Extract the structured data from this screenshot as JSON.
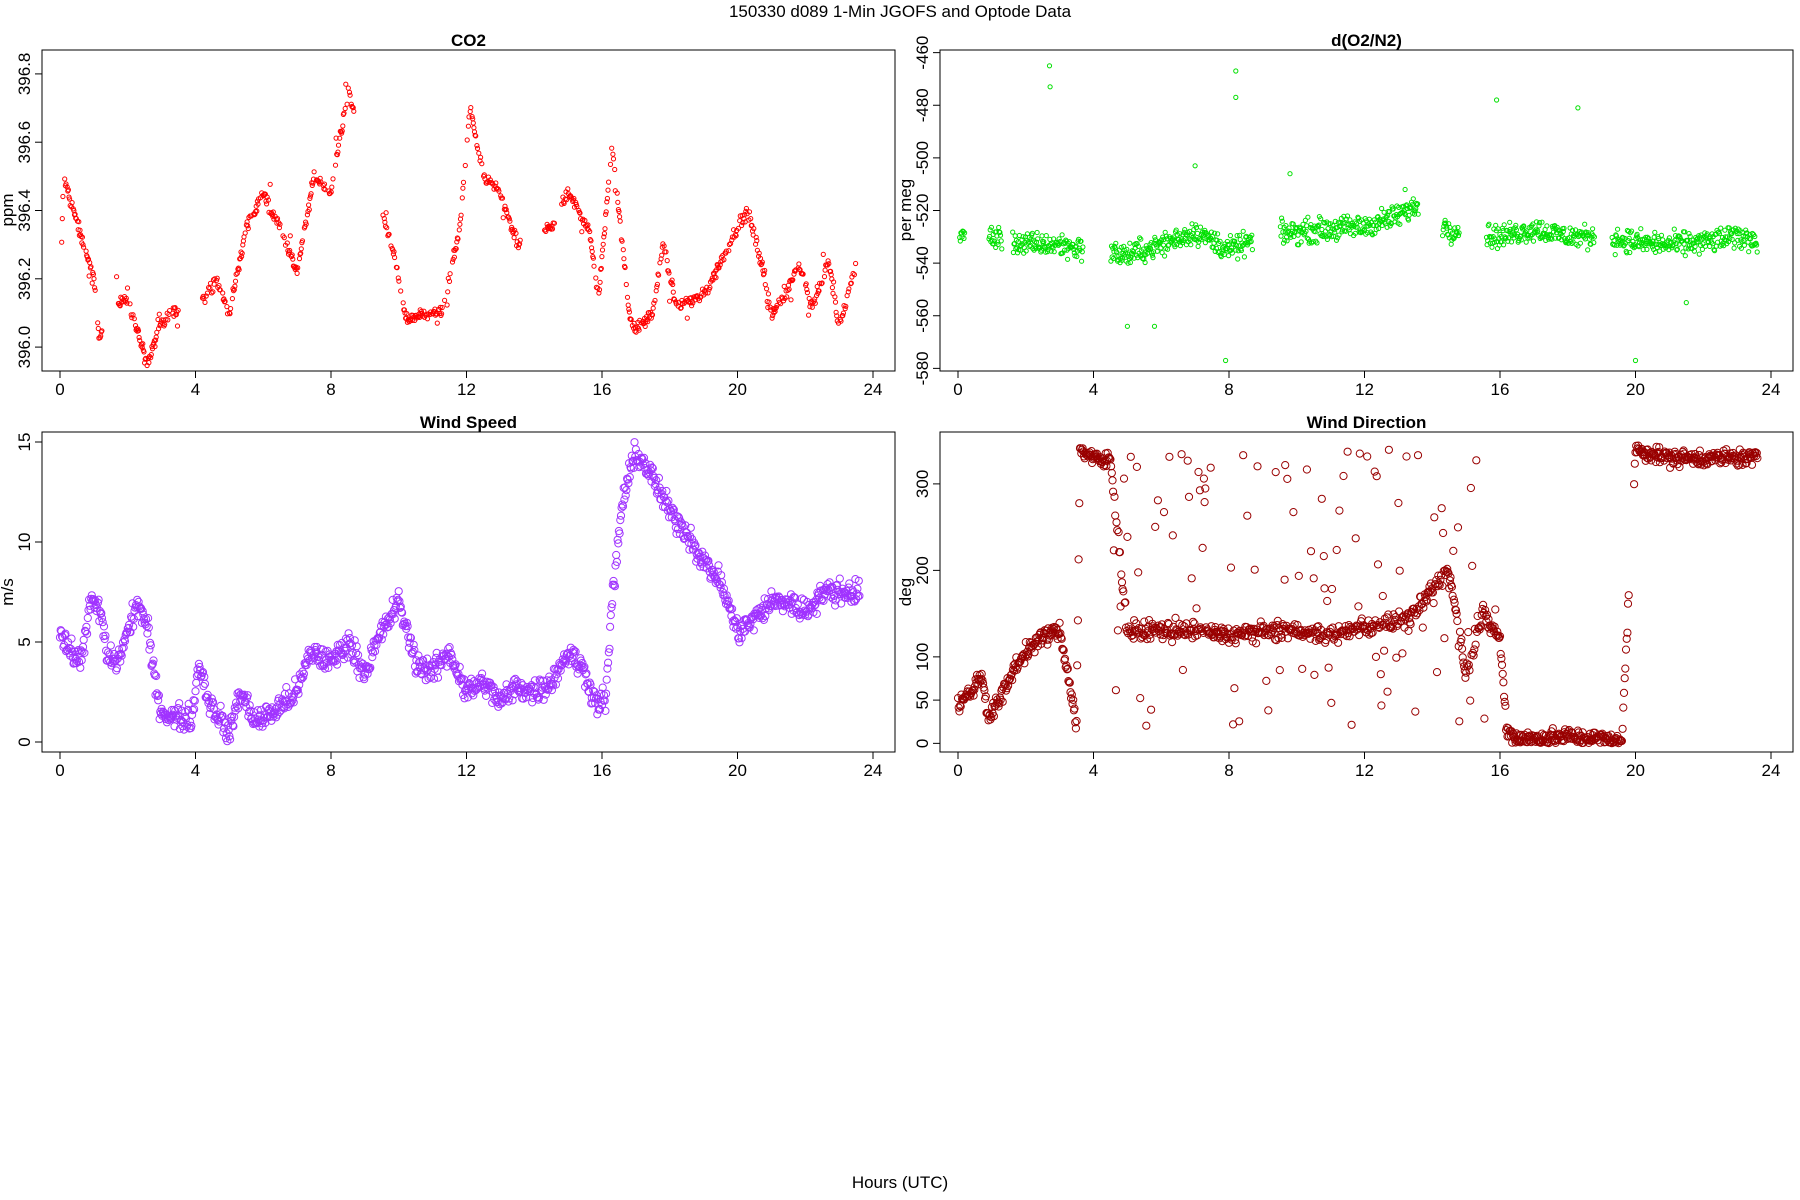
{
  "figure": {
    "title": "150330   d089   1-Min  JGOFS and Optode Data",
    "xlabel": "Hours (UTC)"
  },
  "chart_data": [
    {
      "id": "co2",
      "type": "scatter",
      "title": "CO2",
      "xlabel": "",
      "ylabel": "ppm",
      "xlim": [
        0,
        24
      ],
      "ylim": [
        395.93,
        396.87
      ],
      "xticks": [
        0,
        4,
        8,
        12,
        16,
        20,
        24
      ],
      "yticks": [
        396.0,
        396.2,
        396.4,
        396.6,
        396.8
      ],
      "ytick_labels": [
        "396.0",
        "396.2",
        "396.4",
        "396.6",
        "396.8"
      ],
      "ytick_rotation": "vertical",
      "color": "#ff0000",
      "marker": "small-circle",
      "series_trend": [
        [
          0.05,
          396.3
        ],
        [
          0.1,
          396.5
        ],
        [
          1.0,
          396.2
        ],
        [
          1.15,
          396.03
        ],
        [
          1.7,
          396.12
        ],
        [
          2.0,
          396.15
        ],
        [
          2.2,
          396.07
        ],
        [
          2.6,
          395.95
        ],
        [
          2.9,
          396.05
        ],
        [
          3.3,
          396.1
        ],
        [
          4.3,
          396.15
        ],
        [
          4.6,
          396.2
        ],
        [
          5.0,
          396.1
        ],
        [
          5.5,
          396.35
        ],
        [
          6.0,
          396.45
        ],
        [
          6.5,
          396.35
        ],
        [
          7.0,
          396.22
        ],
        [
          7.5,
          396.5
        ],
        [
          8.0,
          396.45
        ],
        [
          8.5,
          396.75
        ],
        [
          9.8,
          396.3
        ],
        [
          10.2,
          396.08
        ],
        [
          10.8,
          396.1
        ],
        [
          11.3,
          396.1
        ],
        [
          11.8,
          396.35
        ],
        [
          12.1,
          396.7
        ],
        [
          12.5,
          396.5
        ],
        [
          13.0,
          396.45
        ],
        [
          13.5,
          396.3
        ],
        [
          14.5,
          396.35
        ],
        [
          15.0,
          396.45
        ],
        [
          15.6,
          396.35
        ],
        [
          15.9,
          396.15
        ],
        [
          16.3,
          396.6
        ],
        [
          16.5,
          396.4
        ],
        [
          16.8,
          396.1
        ],
        [
          17.0,
          396.05
        ],
        [
          17.5,
          396.1
        ],
        [
          17.8,
          396.3
        ],
        [
          18.2,
          396.12
        ],
        [
          19.0,
          396.15
        ],
        [
          19.5,
          396.25
        ],
        [
          20.0,
          396.35
        ],
        [
          20.3,
          396.4
        ],
        [
          20.7,
          396.25
        ],
        [
          21.0,
          396.1
        ],
        [
          21.4,
          396.15
        ],
        [
          21.8,
          396.25
        ],
        [
          22.2,
          396.12
        ],
        [
          22.7,
          396.25
        ],
        [
          23.0,
          396.05
        ],
        [
          23.5,
          396.25
        ]
      ],
      "gaps": [
        [
          1.25,
          1.65
        ],
        [
          3.5,
          4.2
        ],
        [
          8.7,
          9.5
        ],
        [
          13.6,
          14.3
        ],
        [
          14.6,
          14.8
        ]
      ]
    },
    {
      "id": "o2n2",
      "type": "scatter",
      "title": "d(O2/N2)",
      "xlabel": "",
      "ylabel": "per meg",
      "xlim": [
        0,
        24
      ],
      "ylim": [
        -581,
        -459
      ],
      "xticks": [
        0,
        4,
        8,
        12,
        16,
        20,
        24
      ],
      "yticks": [
        -460,
        -480,
        -500,
        -520,
        -540,
        -560,
        -580
      ],
      "ytick_labels": [
        "-460",
        "-480",
        "-500",
        "-520",
        "-540",
        "-560",
        "-580"
      ],
      "ytick_rotation": "vertical",
      "color": "#00e000",
      "marker": "small-circle",
      "series_trend": [
        [
          0.05,
          -530
        ],
        [
          1.0,
          -530
        ],
        [
          2.0,
          -533
        ],
        [
          3.0,
          -533
        ],
        [
          4.0,
          -535
        ],
        [
          5.0,
          -537
        ],
        [
          6.0,
          -533
        ],
        [
          7.0,
          -528
        ],
        [
          8.0,
          -535
        ],
        [
          9.0,
          -530
        ],
        [
          10.0,
          -528
        ],
        [
          11.0,
          -527
        ],
        [
          12.0,
          -526
        ],
        [
          13.0,
          -522
        ],
        [
          13.6,
          -518
        ],
        [
          14.5,
          -527
        ],
        [
          15.0,
          -528
        ],
        [
          16.0,
          -530
        ],
        [
          17.0,
          -527
        ],
        [
          18.0,
          -530
        ],
        [
          19.0,
          -530
        ],
        [
          20.0,
          -532
        ],
        [
          21.0,
          -533
        ],
        [
          22.0,
          -532
        ],
        [
          23.0,
          -530
        ],
        [
          23.6,
          -531
        ]
      ],
      "gaps": [
        [
          0.2,
          0.9
        ],
        [
          1.3,
          1.6
        ],
        [
          3.7,
          4.5
        ],
        [
          8.7,
          9.5
        ],
        [
          13.6,
          14.3
        ],
        [
          14.8,
          15.6
        ],
        [
          18.8,
          19.3
        ]
      ],
      "outliers": [
        {
          "x": 2.7,
          "y": -465
        },
        {
          "x": 2.72,
          "y": -473
        },
        {
          "x": 8.2,
          "y": -467
        },
        {
          "x": 8.2,
          "y": -477
        },
        {
          "x": 7.9,
          "y": -577
        },
        {
          "x": 20.0,
          "y": -577
        },
        {
          "x": 15.9,
          "y": -478
        },
        {
          "x": 18.3,
          "y": -481
        },
        {
          "x": 5.0,
          "y": -564
        },
        {
          "x": 5.8,
          "y": -564
        },
        {
          "x": 7.0,
          "y": -503
        },
        {
          "x": 9.8,
          "y": -506
        },
        {
          "x": 13.2,
          "y": -512
        },
        {
          "x": 21.5,
          "y": -555
        }
      ]
    },
    {
      "id": "wspd",
      "type": "scatter",
      "title": "Wind Speed",
      "xlabel": "",
      "ylabel": "m/s",
      "xlim": [
        0,
        24
      ],
      "ylim": [
        -0.5,
        15.5
      ],
      "xticks": [
        0,
        4,
        8,
        12,
        16,
        20,
        24
      ],
      "yticks": [
        0,
        5,
        10,
        15
      ],
      "ytick_labels": [
        "0",
        "5",
        "10",
        "15"
      ],
      "ytick_rotation": "vertical",
      "color": "#a033ff",
      "marker": "circle",
      "series_trend": [
        [
          0.0,
          5.5
        ],
        [
          0.3,
          4.5
        ],
        [
          0.6,
          4.0
        ],
        [
          0.9,
          7.0
        ],
        [
          1.2,
          6.5
        ],
        [
          1.4,
          4.2
        ],
        [
          1.7,
          4.0
        ],
        [
          2.0,
          5.5
        ],
        [
          2.3,
          7.0
        ],
        [
          2.6,
          5.5
        ],
        [
          2.8,
          3.0
        ],
        [
          3.0,
          1.5
        ],
        [
          3.5,
          1.2
        ],
        [
          3.9,
          1.2
        ],
        [
          4.1,
          4.0
        ],
        [
          4.4,
          2.0
        ],
        [
          4.8,
          1.0
        ],
        [
          5.0,
          0.3
        ],
        [
          5.3,
          2.5
        ],
        [
          5.8,
          1.0
        ],
        [
          6.3,
          1.5
        ],
        [
          7.0,
          2.5
        ],
        [
          7.4,
          4.5
        ],
        [
          8.0,
          4.0
        ],
        [
          8.5,
          5.0
        ],
        [
          9.0,
          3.5
        ],
        [
          9.5,
          5.5
        ],
        [
          10.0,
          7.0
        ],
        [
          10.5,
          4.0
        ],
        [
          11.0,
          3.5
        ],
        [
          11.5,
          4.5
        ],
        [
          12.0,
          2.5
        ],
        [
          12.5,
          3.0
        ],
        [
          13.0,
          2.0
        ],
        [
          13.5,
          2.8
        ],
        [
          14.0,
          2.5
        ],
        [
          14.5,
          3.0
        ],
        [
          15.0,
          4.5
        ],
        [
          15.5,
          3.5
        ],
        [
          15.8,
          2.0
        ],
        [
          16.1,
          2.0
        ],
        [
          16.3,
          7.0
        ],
        [
          16.6,
          12.0
        ],
        [
          17.0,
          14.5
        ],
        [
          17.4,
          13.5
        ],
        [
          18.0,
          11.5
        ],
        [
          18.5,
          10.5
        ],
        [
          19.0,
          9.0
        ],
        [
          19.5,
          8.0
        ],
        [
          20.0,
          5.5
        ],
        [
          20.4,
          6.0
        ],
        [
          21.0,
          7.0
        ],
        [
          21.5,
          7.0
        ],
        [
          22.0,
          6.5
        ],
        [
          22.5,
          7.5
        ],
        [
          23.0,
          7.5
        ],
        [
          23.6,
          7.5
        ]
      ],
      "gaps": []
    },
    {
      "id": "wdir",
      "type": "scatter",
      "title": "Wind Direction",
      "xlabel": "",
      "ylabel": "deg",
      "xlim": [
        0,
        24
      ],
      "ylim": [
        -10,
        360
      ],
      "xticks": [
        0,
        4,
        8,
        12,
        16,
        20,
        24
      ],
      "yticks": [
        0,
        50,
        100,
        200,
        300
      ],
      "ytick_labels": [
        "0",
        "50",
        "100",
        "200",
        "300"
      ],
      "ytick_rotation": "vertical",
      "color": "#990000",
      "marker": "circle",
      "series_trend": [
        [
          0.0,
          45
        ],
        [
          0.4,
          60
        ],
        [
          0.7,
          80
        ],
        [
          0.9,
          30
        ],
        [
          1.3,
          55
        ],
        [
          1.7,
          90
        ],
        [
          2.1,
          110
        ],
        [
          2.6,
          125
        ],
        [
          3.0,
          130
        ],
        [
          3.3,
          70
        ],
        [
          3.5,
          20
        ],
        [
          3.6,
          340
        ],
        [
          4.0,
          330
        ],
        [
          4.3,
          325
        ],
        [
          4.5,
          330
        ],
        [
          5.0,
          130
        ],
        [
          6.0,
          130
        ],
        [
          7.0,
          130
        ],
        [
          8.0,
          125
        ],
        [
          9.0,
          130
        ],
        [
          10.0,
          130
        ],
        [
          11.0,
          125
        ],
        [
          12.0,
          135
        ],
        [
          13.0,
          140
        ],
        [
          13.5,
          150
        ],
        [
          14.0,
          180
        ],
        [
          14.5,
          200
        ],
        [
          15.0,
          80
        ],
        [
          15.5,
          150
        ],
        [
          16.0,
          120
        ],
        [
          16.2,
          15
        ],
        [
          16.5,
          5
        ],
        [
          17.0,
          5
        ],
        [
          18.0,
          8
        ],
        [
          19.0,
          5
        ],
        [
          19.6,
          2
        ],
        [
          20.0,
          340
        ],
        [
          20.5,
          335
        ],
        [
          21.0,
          330
        ],
        [
          22.0,
          330
        ],
        [
          23.0,
          330
        ],
        [
          23.6,
          330
        ]
      ],
      "gaps": [
        [
          19.8,
          19.95
        ]
      ]
    }
  ]
}
